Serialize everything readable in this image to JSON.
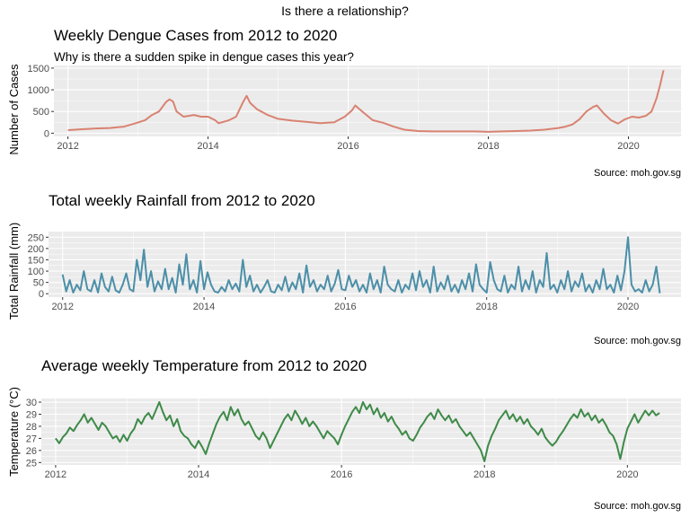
{
  "figure_title": "Is there a relationship?",
  "chart_data": [
    {
      "type": "line",
      "title": "Weekly Dengue Cases from 2012 to 2020",
      "subtitle": "Why is there a sudden spike in dengue cases this year?",
      "ylabel": "Number of Cases",
      "xlabel": "",
      "caption": "Source: moh.gov.sg",
      "color": "#D98271",
      "xlim": [
        2011.8,
        2020.75
      ],
      "ylim": [
        -75,
        1560
      ],
      "xticks": [
        2012,
        2014,
        2016,
        2018,
        2020
      ],
      "xtick_labels": [
        "2012",
        "2014",
        "2016",
        "2018",
        "2020"
      ],
      "yticks": [
        0,
        500,
        1000,
        1500
      ],
      "ytick_labels": [
        "0",
        "500",
        "1000",
        "1500"
      ],
      "grid": true,
      "series": [
        {
          "x": [
            2012.0,
            2012.2,
            2012.4,
            2012.6,
            2012.8,
            2012.95,
            2013.1,
            2013.2,
            2013.3,
            2013.4,
            2013.45,
            2013.5,
            2013.55,
            2013.65,
            2013.8,
            2013.9,
            2014.0,
            2014.1,
            2014.15,
            2014.3,
            2014.4,
            2014.5,
            2014.55,
            2014.6,
            2014.7,
            2014.85,
            2015.0,
            2015.2,
            2015.4,
            2015.6,
            2015.8,
            2015.95,
            2016.05,
            2016.1,
            2016.2,
            2016.35,
            2016.5,
            2016.65,
            2016.8,
            2017.0,
            2017.2,
            2017.5,
            2017.8,
            2018.0,
            2018.2,
            2018.4,
            2018.6,
            2018.8,
            2019.0,
            2019.1,
            2019.2,
            2019.3,
            2019.4,
            2019.5,
            2019.55,
            2019.65,
            2019.75,
            2019.85,
            2019.95,
            2020.05,
            2020.15,
            2020.25,
            2020.33,
            2020.4,
            2020.45,
            2020.5
          ],
          "y": [
            70,
            90,
            110,
            120,
            150,
            220,
            300,
            420,
            500,
            720,
            780,
            730,
            500,
            380,
            420,
            380,
            380,
            300,
            230,
            300,
            380,
            720,
            860,
            700,
            550,
            420,
            330,
            290,
            260,
            230,
            250,
            380,
            520,
            640,
            500,
            300,
            240,
            150,
            80,
            50,
            40,
            40,
            40,
            30,
            40,
            50,
            60,
            80,
            120,
            150,
            200,
            320,
            500,
            610,
            640,
            450,
            300,
            220,
            320,
            380,
            360,
            400,
            500,
            800,
            1100,
            1450
          ]
        }
      ]
    },
    {
      "type": "line",
      "title": "Total weekly Rainfall from 2012 to 2020",
      "ylabel": "Total Rainfall (mm)",
      "xlabel": "",
      "caption": "Source: moh.gov.sg",
      "color": "#4C8FA8",
      "xlim": [
        2011.8,
        2020.75
      ],
      "ylim": [
        -15,
        275
      ],
      "xticks": [
        2012,
        2014,
        2016,
        2018,
        2020
      ],
      "xtick_labels": [
        "2012",
        "2014",
        "2016",
        "2018",
        "2020"
      ],
      "yticks": [
        0,
        50,
        100,
        150,
        200,
        250
      ],
      "ytick_labels": [
        "0",
        "50",
        "100",
        "150",
        "200",
        "250"
      ],
      "grid": true,
      "series": [
        {
          "x": [
            2012.0,
            2012.05,
            2012.1,
            2012.15,
            2012.2,
            2012.25,
            2012.3,
            2012.35,
            2012.4,
            2012.45,
            2012.5,
            2012.55,
            2012.6,
            2012.65,
            2012.7,
            2012.75,
            2012.8,
            2012.85,
            2012.9,
            2012.95,
            2013.0,
            2013.05,
            2013.1,
            2013.15,
            2013.2,
            2013.25,
            2013.3,
            2013.35,
            2013.4,
            2013.45,
            2013.5,
            2013.55,
            2013.6,
            2013.65,
            2013.7,
            2013.75,
            2013.8,
            2013.85,
            2013.9,
            2013.95,
            2014.0,
            2014.05,
            2014.1,
            2014.15,
            2014.2,
            2014.25,
            2014.3,
            2014.35,
            2014.4,
            2014.45,
            2014.5,
            2014.55,
            2014.6,
            2014.65,
            2014.7,
            2014.75,
            2014.8,
            2014.85,
            2014.9,
            2014.95,
            2015.0,
            2015.05,
            2015.1,
            2015.15,
            2015.2,
            2015.25,
            2015.3,
            2015.35,
            2015.4,
            2015.45,
            2015.5,
            2015.55,
            2015.6,
            2015.65,
            2015.7,
            2015.75,
            2015.8,
            2015.85,
            2015.9,
            2015.95,
            2016.0,
            2016.05,
            2016.1,
            2016.15,
            2016.2,
            2016.25,
            2016.3,
            2016.35,
            2016.4,
            2016.45,
            2016.5,
            2016.55,
            2016.6,
            2016.65,
            2016.7,
            2016.75,
            2016.8,
            2016.85,
            2016.9,
            2016.95,
            2017.0,
            2017.05,
            2017.1,
            2017.15,
            2017.2,
            2017.25,
            2017.3,
            2017.35,
            2017.4,
            2017.45,
            2017.5,
            2017.55,
            2017.6,
            2017.65,
            2017.7,
            2017.75,
            2017.8,
            2017.85,
            2017.9,
            2017.95,
            2018.0,
            2018.05,
            2018.1,
            2018.15,
            2018.2,
            2018.25,
            2018.3,
            2018.35,
            2018.4,
            2018.45,
            2018.5,
            2018.55,
            2018.6,
            2018.65,
            2018.7,
            2018.75,
            2018.8,
            2018.85,
            2018.9,
            2018.95,
            2019.0,
            2019.05,
            2019.1,
            2019.15,
            2019.2,
            2019.25,
            2019.3,
            2019.35,
            2019.4,
            2019.45,
            2019.5,
            2019.55,
            2019.6,
            2019.65,
            2019.7,
            2019.75,
            2019.8,
            2019.85,
            2019.9,
            2019.95,
            2020.0,
            2020.05,
            2020.1,
            2020.15,
            2020.2,
            2020.25,
            2020.3,
            2020.35,
            2020.4,
            2020.45
          ],
          "y": [
            85,
            10,
            60,
            5,
            40,
            15,
            100,
            20,
            10,
            60,
            5,
            90,
            30,
            10,
            75,
            15,
            5,
            40,
            90,
            20,
            10,
            150,
            60,
            195,
            30,
            100,
            10,
            55,
            20,
            110,
            20,
            70,
            5,
            130,
            40,
            175,
            20,
            60,
            5,
            145,
            20,
            95,
            40,
            10,
            5,
            30,
            10,
            60,
            20,
            45,
            10,
            150,
            30,
            80,
            10,
            40,
            5,
            30,
            60,
            10,
            5,
            40,
            15,
            75,
            10,
            50,
            20,
            90,
            5,
            125,
            30,
            60,
            10,
            40,
            20,
            80,
            10,
            45,
            105,
            20,
            15,
            80,
            30,
            60,
            10,
            40,
            5,
            90,
            20,
            60,
            5,
            120,
            40,
            20,
            10,
            60,
            5,
            40,
            20,
            90,
            15,
            100,
            30,
            60,
            5,
            120,
            10,
            50,
            20,
            80,
            10,
            40,
            5,
            60,
            20,
            90,
            10,
            130,
            40,
            20,
            5,
            140,
            60,
            20,
            10,
            80,
            5,
            40,
            20,
            120,
            10,
            60,
            20,
            100,
            5,
            60,
            30,
            180,
            20,
            40,
            5,
            60,
            20,
            100,
            10,
            55,
            30,
            90,
            10,
            40,
            5,
            60,
            20,
            110,
            20,
            40,
            5,
            80,
            15,
            100,
            250,
            40,
            10,
            20,
            5,
            60,
            10,
            40,
            120,
            2
          ]
        }
      ]
    },
    {
      "type": "line",
      "title": "Average weekly Temperature from 2012 to 2020",
      "ylabel": "Temperature (°C)",
      "xlabel": "",
      "caption": "Source: moh.gov.sg",
      "color": "#3E8A48",
      "xlim": [
        2011.8,
        2020.75
      ],
      "ylim": [
        24.8,
        30.3
      ],
      "xticks": [
        2012,
        2014,
        2016,
        2018,
        2020
      ],
      "xtick_labels": [
        "2012",
        "2014",
        "2016",
        "2018",
        "2020"
      ],
      "yticks": [
        25,
        26,
        27,
        28,
        29,
        30
      ],
      "ytick_labels": [
        "25",
        "26",
        "27",
        "28",
        "29",
        "30"
      ],
      "grid": true,
      "series": [
        {
          "x": [
            2012.0,
            2012.05,
            2012.1,
            2012.15,
            2012.2,
            2012.25,
            2012.3,
            2012.35,
            2012.4,
            2012.45,
            2012.5,
            2012.55,
            2012.6,
            2012.65,
            2012.7,
            2012.75,
            2012.8,
            2012.85,
            2012.9,
            2012.95,
            2013.0,
            2013.05,
            2013.1,
            2013.15,
            2013.2,
            2013.25,
            2013.3,
            2013.35,
            2013.4,
            2013.45,
            2013.5,
            2013.55,
            2013.6,
            2013.65,
            2013.7,
            2013.75,
            2013.8,
            2013.85,
            2013.9,
            2013.95,
            2014.0,
            2014.05,
            2014.1,
            2014.15,
            2014.2,
            2014.25,
            2014.3,
            2014.35,
            2014.4,
            2014.45,
            2014.5,
            2014.55,
            2014.6,
            2014.65,
            2014.7,
            2014.75,
            2014.8,
            2014.85,
            2014.9,
            2014.95,
            2015.0,
            2015.05,
            2015.1,
            2015.15,
            2015.2,
            2015.25,
            2015.3,
            2015.35,
            2015.4,
            2015.45,
            2015.5,
            2015.55,
            2015.6,
            2015.65,
            2015.7,
            2015.75,
            2015.8,
            2015.85,
            2015.9,
            2015.95,
            2016.0,
            2016.05,
            2016.1,
            2016.15,
            2016.2,
            2016.25,
            2016.3,
            2016.35,
            2016.4,
            2016.45,
            2016.5,
            2016.55,
            2016.6,
            2016.65,
            2016.7,
            2016.75,
            2016.8,
            2016.85,
            2016.9,
            2016.95,
            2017.0,
            2017.05,
            2017.1,
            2017.15,
            2017.2,
            2017.25,
            2017.3,
            2017.35,
            2017.4,
            2017.45,
            2017.5,
            2017.55,
            2017.6,
            2017.65,
            2017.7,
            2017.75,
            2017.8,
            2017.85,
            2017.9,
            2017.95,
            2018.0,
            2018.05,
            2018.1,
            2018.15,
            2018.2,
            2018.25,
            2018.3,
            2018.35,
            2018.4,
            2018.45,
            2018.5,
            2018.55,
            2018.6,
            2018.65,
            2018.7,
            2018.75,
            2018.8,
            2018.85,
            2018.9,
            2018.95,
            2019.0,
            2019.05,
            2019.1,
            2019.15,
            2019.2,
            2019.25,
            2019.3,
            2019.35,
            2019.4,
            2019.45,
            2019.5,
            2019.55,
            2019.6,
            2019.65,
            2019.7,
            2019.75,
            2019.8,
            2019.85,
            2019.9,
            2019.95,
            2020.0,
            2020.05,
            2020.1,
            2020.15,
            2020.2,
            2020.25,
            2020.3,
            2020.35,
            2020.4,
            2020.45
          ],
          "y": [
            27.0,
            26.6,
            27.1,
            27.4,
            27.9,
            27.6,
            28.1,
            28.5,
            29.0,
            28.3,
            28.7,
            28.2,
            27.7,
            28.3,
            28.0,
            27.5,
            27.0,
            27.2,
            26.7,
            27.3,
            26.8,
            27.4,
            27.8,
            28.6,
            28.2,
            28.8,
            29.1,
            28.6,
            29.3,
            30.0,
            29.2,
            28.5,
            28.9,
            28.0,
            28.6,
            27.6,
            27.2,
            27.0,
            26.5,
            26.2,
            26.8,
            26.3,
            25.7,
            26.6,
            27.4,
            28.2,
            28.8,
            29.2,
            28.5,
            29.6,
            28.9,
            29.4,
            28.6,
            28.1,
            28.4,
            27.8,
            27.2,
            26.9,
            27.5,
            27.0,
            26.2,
            26.8,
            27.4,
            28.0,
            28.6,
            29.0,
            28.5,
            29.3,
            28.8,
            28.2,
            28.7,
            28.0,
            28.4,
            28.0,
            27.5,
            27.0,
            27.6,
            27.3,
            27.0,
            26.5,
            27.3,
            28.0,
            28.6,
            29.2,
            29.6,
            29.1,
            30.0,
            29.4,
            29.8,
            29.0,
            29.5,
            28.7,
            29.1,
            28.4,
            28.8,
            28.2,
            27.8,
            27.3,
            27.6,
            27.0,
            26.8,
            27.3,
            27.9,
            28.3,
            28.8,
            29.1,
            28.6,
            29.4,
            28.9,
            28.5,
            28.9,
            28.3,
            28.6,
            28.0,
            27.6,
            27.2,
            27.5,
            27.0,
            26.5,
            26.0,
            25.1,
            26.4,
            27.2,
            27.8,
            28.5,
            28.9,
            29.3,
            28.6,
            29.0,
            28.4,
            28.8,
            28.2,
            28.6,
            28.0,
            27.7,
            27.3,
            27.8,
            27.1,
            26.7,
            26.4,
            26.7,
            27.2,
            27.6,
            28.1,
            28.6,
            29.0,
            28.7,
            29.4,
            28.8,
            29.1,
            28.5,
            28.9,
            28.3,
            28.6,
            28.1,
            27.5,
            27.2,
            26.5,
            25.3,
            26.7,
            27.8,
            28.4,
            29.0,
            28.3,
            28.8,
            29.3,
            28.9,
            29.3,
            28.9,
            29.1
          ]
        }
      ]
    }
  ]
}
